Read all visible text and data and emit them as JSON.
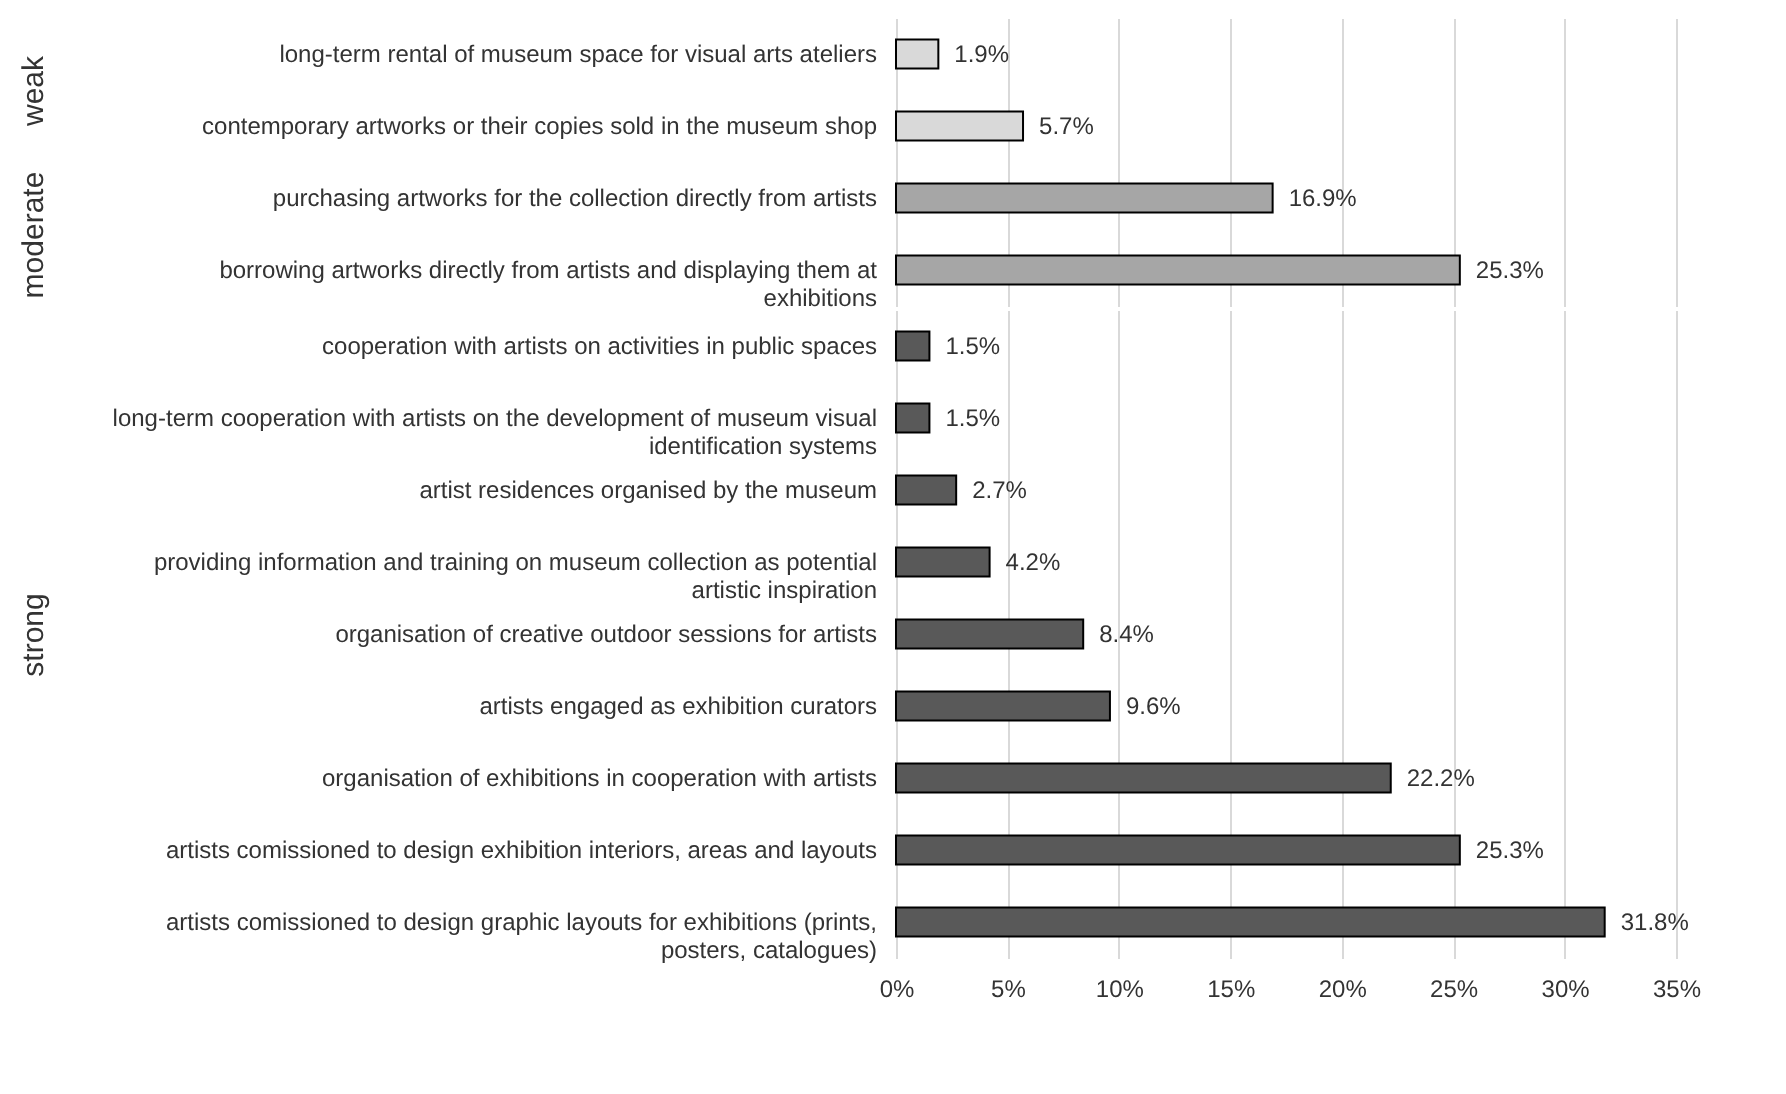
{
  "chart_data": [
    {
      "type": "bar",
      "orientation": "horizontal",
      "ylabel": "weak",
      "categories": [
        "long-term rental of museum space for visual arts ateliers",
        "contemporary artworks or their copies sold in the museum shop"
      ],
      "series": [
        {
          "color": "#d9d9d9",
          "values": [
            1.9,
            5.7
          ],
          "value_labels": [
            "1.9%",
            "5.7%"
          ]
        }
      ],
      "xlim": [
        0,
        35
      ],
      "xticks": [
        0,
        5,
        10,
        15,
        20,
        25,
        30,
        35
      ],
      "grid": "x",
      "tick_labels": "y"
    },
    {
      "type": "bar",
      "orientation": "horizontal",
      "ylabel": "moderate",
      "categories": [
        "purchasing artworks for the collection directly from artists",
        "borrowing artworks directly from artists and displaying them at exhibitions"
      ],
      "series": [
        {
          "color": "#a6a6a6",
          "values": [
            16.9,
            25.3
          ],
          "value_labels": [
            "16.9%",
            "25.3%"
          ]
        }
      ],
      "xlim": [
        0,
        35
      ],
      "xticks": [
        0,
        5,
        10,
        15,
        20,
        25,
        30,
        35
      ],
      "grid": "x",
      "tick_labels": "y"
    },
    {
      "type": "bar",
      "orientation": "horizontal",
      "ylabel": "strong",
      "categories": [
        "cooperation with artists on activities in public spaces",
        "long-term cooperation with artists on the development of museum visual identification systems",
        "artist residences organised by the museum",
        "providing information and training on museum collection as potential artistic inspiration",
        "organisation of creative outdoor sessions for artists",
        "artists engaged as exhibition curators",
        "organisation of exhibitions in cooperation with artists",
        "artists comissioned to design exhibition interiors, areas and layouts",
        "artists comissioned to design graphic layouts for exhibitions (prints, posters, catalogues)"
      ],
      "series": [
        {
          "color": "#595959",
          "values": [
            1.5,
            1.5,
            2.7,
            4.2,
            8.4,
            9.6,
            22.2,
            25.3,
            31.8
          ],
          "value_labels": [
            "1.5%",
            "1.5%",
            "2.7%",
            "4.2%",
            "8.4%",
            "9.6%",
            "22.2%",
            "25.3%",
            "31.8%"
          ]
        }
      ],
      "xlim": [
        0,
        35
      ],
      "xticks": [
        {
          "value": 0,
          "label": "0%"
        },
        {
          "value": 5,
          "label": "5%"
        },
        {
          "value": 10,
          "label": "10%"
        },
        {
          "value": 15,
          "label": "15%"
        },
        {
          "value": 20,
          "label": "20%"
        },
        {
          "value": 25,
          "label": "25%"
        },
        {
          "value": 30,
          "label": "30%"
        },
        {
          "value": 35,
          "label": "35%"
        }
      ],
      "grid": "x"
    }
  ]
}
